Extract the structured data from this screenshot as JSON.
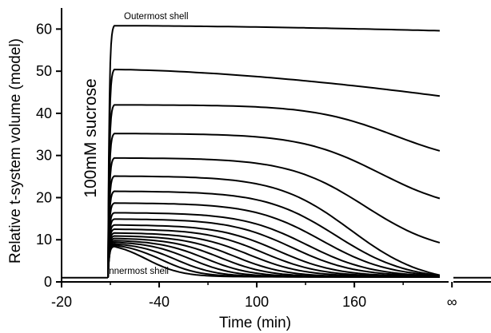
{
  "chart_data": {
    "type": "line",
    "title": "",
    "xlabel": "Time (min)",
    "ylabel": "Relative t-system volume (model)",
    "x_tick_labels": [
      "-20",
      "-40",
      "100",
      "160",
      "∞"
    ],
    "x_tick_positions": [
      -20,
      0,
      20,
      40,
      60
    ],
    "xlim": [
      -20,
      68
    ],
    "ylim": [
      0,
      65
    ],
    "y_ticks": [
      0,
      10,
      20,
      30,
      40,
      50,
      60
    ],
    "grid": false,
    "axis_break": "between x=58 and x=60 (∞)",
    "annotations": {
      "outermost": "Outermost shell",
      "innermost": "Innermost shell",
      "solution": "100mM sucrose"
    },
    "baseline": 1,
    "switch_x": -10.5,
    "series": [
      {
        "peak": 60.8,
        "final": 59.6
      },
      {
        "peak": 50.4,
        "final": 44.1
      },
      {
        "peak": 42.0,
        "final": 31.1
      },
      {
        "peak": 35.2,
        "final": 19.8
      },
      {
        "peak": 29.4,
        "final": 9.3
      },
      {
        "peak": 25.1,
        "final": 1.6
      },
      {
        "peak": 21.5,
        "final": 1.5
      },
      {
        "peak": 18.7,
        "final": 1.5
      },
      {
        "peak": 16.4,
        "final": 1.4
      },
      {
        "peak": 14.9,
        "final": 1.4
      },
      {
        "peak": 13.5,
        "final": 1.3
      },
      {
        "peak": 12.5,
        "final": 1.3
      },
      {
        "peak": 11.6,
        "final": 1.3
      },
      {
        "peak": 10.9,
        "final": 1.2
      },
      {
        "peak": 10.3,
        "final": 1.2
      },
      {
        "peak": 9.8,
        "final": 1.2
      },
      {
        "peak": 9.4,
        "final": 1.2
      },
      {
        "peak": 9.0,
        "final": 1.2
      },
      {
        "peak": 8.7,
        "final": 1.2
      },
      {
        "peak": 8.4,
        "final": 1.2
      }
    ]
  }
}
